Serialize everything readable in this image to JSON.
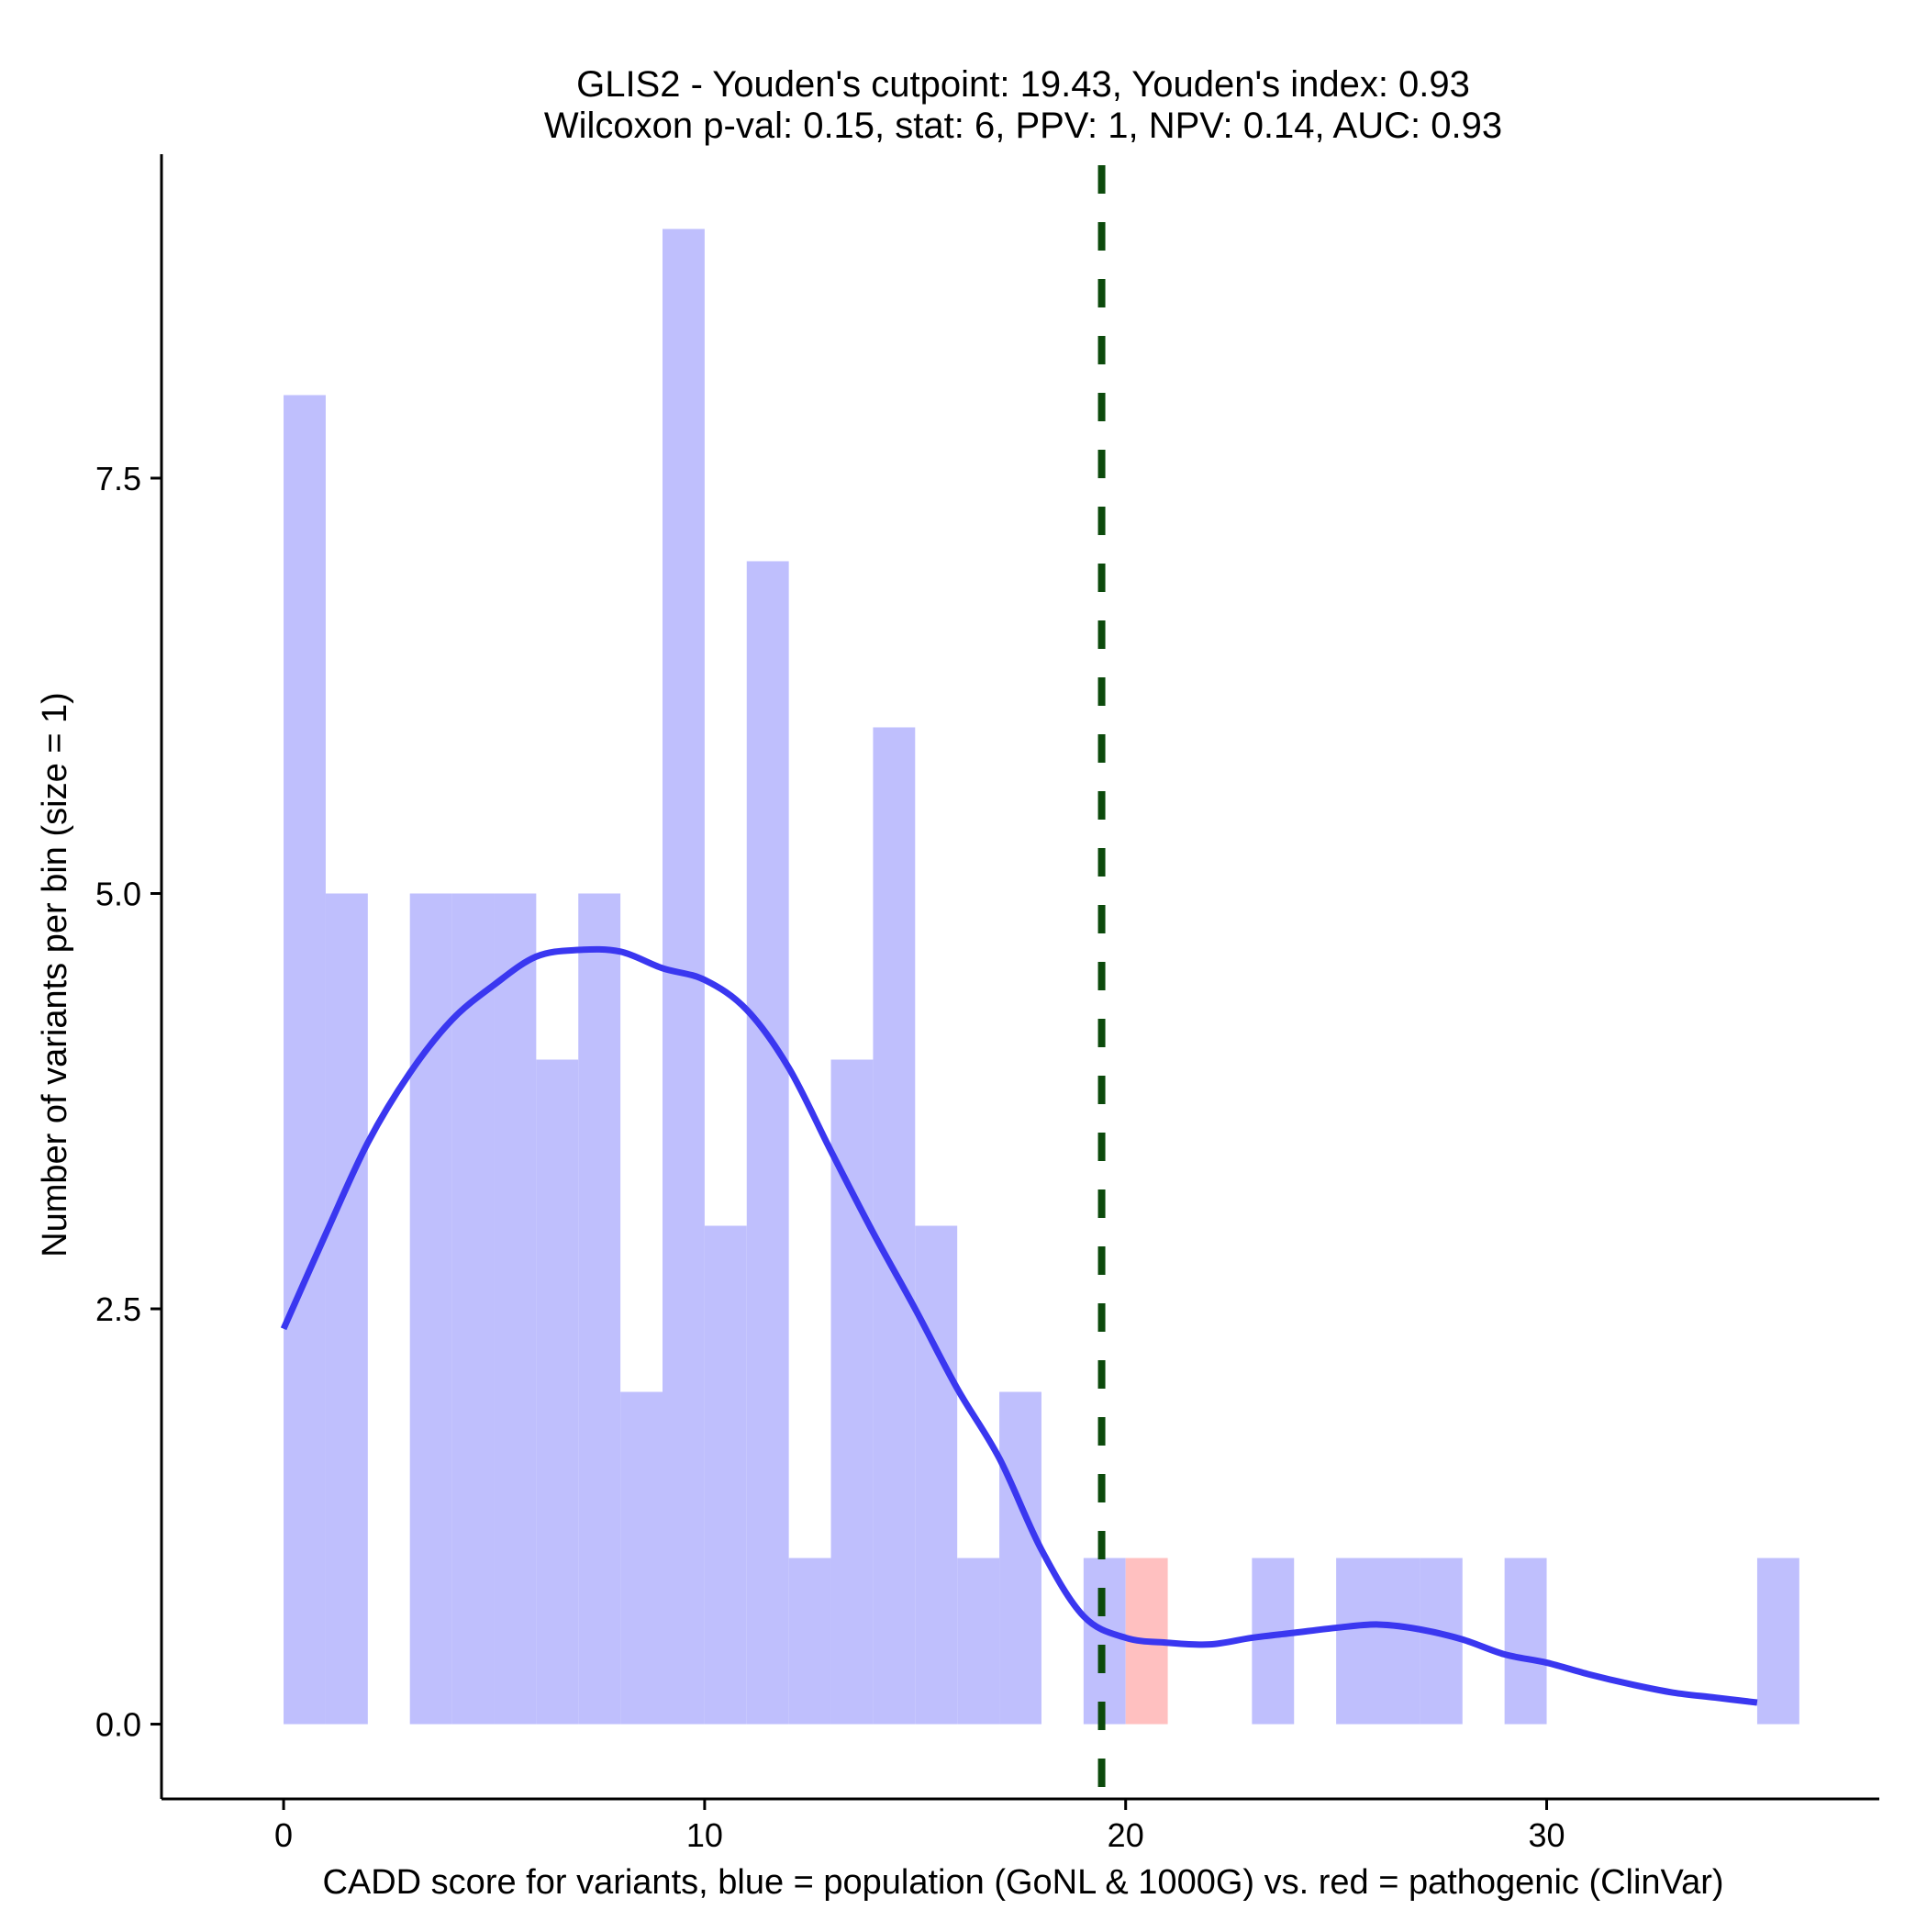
{
  "chart_data": {
    "type": "histogram",
    "title_line1": "GLIS2 - Youden's cutpoint: 19.43, Youden's index: 0.93",
    "title_line2": "Wilcoxon p-val: 0.15, stat: 6, PPV: 1, NPV: 0.14, AUC: 0.93",
    "xlabel": "CADD score for variants, blue = population (GoNL & 1000G) vs. red = pathogenic (ClinVar)",
    "ylabel": "Number of variants per bin (size = 1)",
    "xlim": [
      -2.9,
      37.9
    ],
    "ylim": [
      -0.45,
      9.45
    ],
    "x_ticks": [
      0,
      10,
      20,
      30
    ],
    "x_tick_labels": [
      "0",
      "10",
      "20",
      "30"
    ],
    "y_ticks": [
      0,
      2.5,
      5,
      7.5
    ],
    "y_tick_labels": [
      "0.0",
      "2.5",
      "5.0",
      "7.5"
    ],
    "bin_width": 1,
    "cutpoint": 19.43,
    "colors": {
      "population": "#bfbffd",
      "pathogenic": "#ffc0c0",
      "density": "#3a37f0",
      "cutpoint": "#0c4a0c"
    },
    "series": [
      {
        "name": "population (GoNL & 1000G)",
        "bins": [
          {
            "start": 0,
            "count": 8
          },
          {
            "start": 1,
            "count": 5
          },
          {
            "start": 3,
            "count": 5
          },
          {
            "start": 4,
            "count": 5
          },
          {
            "start": 5,
            "count": 5
          },
          {
            "start": 6,
            "count": 4
          },
          {
            "start": 7,
            "count": 5
          },
          {
            "start": 8,
            "count": 2
          },
          {
            "start": 9,
            "count": 9
          },
          {
            "start": 10,
            "count": 3
          },
          {
            "start": 11,
            "count": 7
          },
          {
            "start": 12,
            "count": 1
          },
          {
            "start": 13,
            "count": 4
          },
          {
            "start": 14,
            "count": 6
          },
          {
            "start": 15,
            "count": 3
          },
          {
            "start": 16,
            "count": 1
          },
          {
            "start": 17,
            "count": 2
          },
          {
            "start": 19,
            "count": 1
          },
          {
            "start": 23,
            "count": 1
          },
          {
            "start": 25,
            "count": 1
          },
          {
            "start": 26,
            "count": 1
          },
          {
            "start": 27,
            "count": 1
          },
          {
            "start": 29,
            "count": 1
          },
          {
            "start": 35,
            "count": 1
          }
        ]
      },
      {
        "name": "pathogenic (ClinVar)",
        "bins": [
          {
            "start": 20,
            "count": 1
          }
        ]
      }
    ],
    "density_curve": {
      "name": "population density",
      "x": [
        0,
        1,
        2,
        3,
        4,
        5,
        6,
        7,
        8,
        9,
        10,
        11,
        12,
        13,
        14,
        15,
        16,
        17,
        18,
        19,
        20,
        21,
        22,
        23,
        24,
        25,
        26,
        27,
        28,
        29,
        30,
        31,
        32,
        33,
        34,
        35
      ],
      "y": [
        2.38,
        2.95,
        3.5,
        3.92,
        4.24,
        4.45,
        4.62,
        4.66,
        4.65,
        4.55,
        4.48,
        4.3,
        3.95,
        3.45,
        2.96,
        2.5,
        2.02,
        1.6,
        1.05,
        0.65,
        0.52,
        0.49,
        0.48,
        0.52,
        0.55,
        0.58,
        0.6,
        0.57,
        0.51,
        0.42,
        0.37,
        0.3,
        0.24,
        0.19,
        0.16,
        0.13
      ]
    }
  }
}
